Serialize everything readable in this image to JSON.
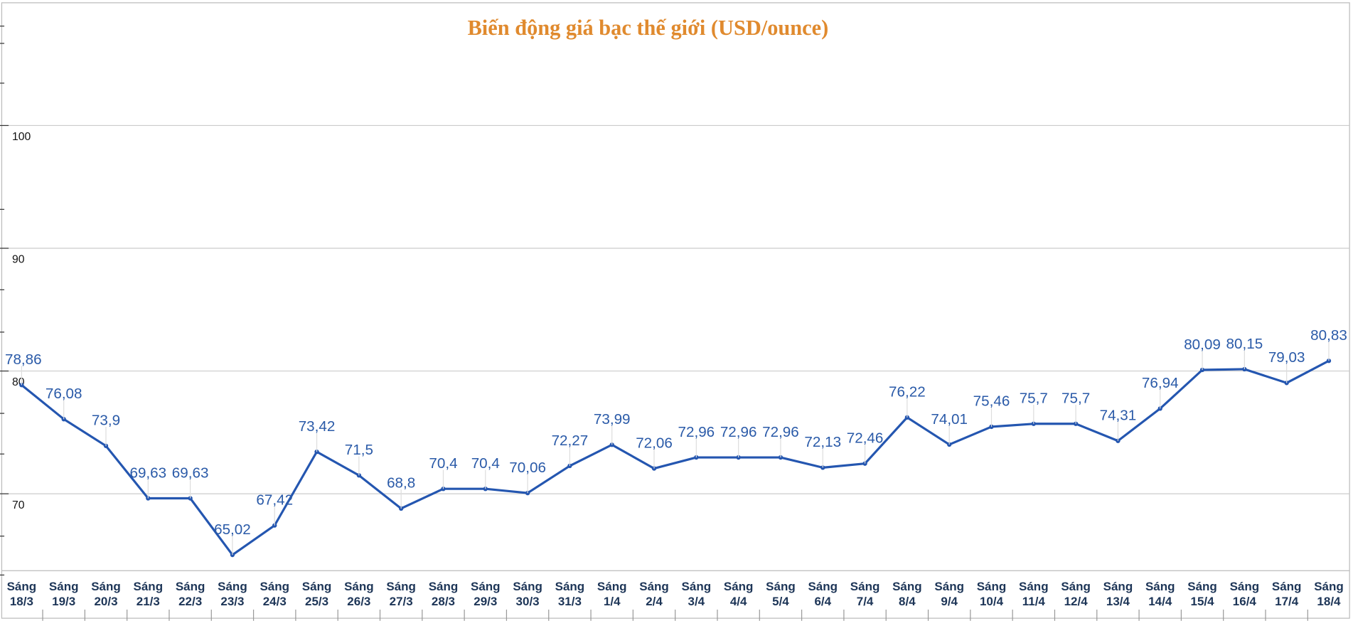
{
  "chart_data": {
    "type": "line",
    "title": "Biến động giá bạc thế giới (USD/ounce)",
    "xlabel": "",
    "ylabel": "",
    "ylim": [
      63.7,
      110
    ],
    "yticks": [
      70,
      80,
      90,
      100
    ],
    "grid": true,
    "legend": "none",
    "categories": [
      [
        "Sáng",
        "18/3"
      ],
      [
        "Sáng",
        "19/3"
      ],
      [
        "Sáng",
        "20/3"
      ],
      [
        "Sáng",
        "21/3"
      ],
      [
        "Sáng",
        "22/3"
      ],
      [
        "Sáng",
        "23/3"
      ],
      [
        "Sáng",
        "24/3"
      ],
      [
        "Sáng",
        "25/3"
      ],
      [
        "Sáng",
        "26/3"
      ],
      [
        "Sáng",
        "27/3"
      ],
      [
        "Sáng",
        "28/3"
      ],
      [
        "Sáng",
        "29/3"
      ],
      [
        "Sáng",
        "30/3"
      ],
      [
        "Sáng",
        "31/3"
      ],
      [
        "Sáng",
        "1/4"
      ],
      [
        "Sáng",
        "2/4"
      ],
      [
        "Sáng",
        "3/4"
      ],
      [
        "Sáng",
        "4/4"
      ],
      [
        "Sáng",
        "5/4"
      ],
      [
        "Sáng",
        "6/4"
      ],
      [
        "Sáng",
        "7/4"
      ],
      [
        "Sáng",
        "8/4"
      ],
      [
        "Sáng",
        "9/4"
      ],
      [
        "Sáng",
        "10/4"
      ],
      [
        "Sáng",
        "11/4"
      ],
      [
        "Sáng",
        "12/4"
      ],
      [
        "Sáng",
        "13/4"
      ],
      [
        "Sáng",
        "14/4"
      ],
      [
        "Sáng",
        "15/4"
      ],
      [
        "Sáng",
        "16/4"
      ],
      [
        "Sáng",
        "17/4"
      ],
      [
        "Sáng",
        "18/4"
      ]
    ],
    "values": [
      78.86,
      76.08,
      73.9,
      69.63,
      69.63,
      65.02,
      67.42,
      73.42,
      71.5,
      68.8,
      70.4,
      70.4,
      70.06,
      72.27,
      73.99,
      72.06,
      72.96,
      72.96,
      72.96,
      72.13,
      72.46,
      76.22,
      74.01,
      75.46,
      75.7,
      75.7,
      74.31,
      76.94,
      80.09,
      80.15,
      79.03,
      80.83
    ],
    "data_labels": [
      "78,86",
      "76,08",
      "73,9",
      "69,63",
      "69,63",
      "65,02",
      "67,42",
      "73,42",
      "71,5",
      "68,8",
      "70,4",
      "70,4",
      "70,06",
      "72,27",
      "73,99",
      "72,06",
      "72,96",
      "72,96",
      "72,96",
      "72,13",
      "72,46",
      "76,22",
      "74,01",
      "75,46",
      "75,7",
      "75,7",
      "74,31",
      "76,94",
      "80,09",
      "80,15",
      "79,03",
      "80,83"
    ],
    "colors": {
      "line": "#2456b0",
      "label": "#2a5aa8",
      "title": "#e08a2e",
      "xlabel": "#1d3557",
      "grid": "#cccccc"
    }
  }
}
